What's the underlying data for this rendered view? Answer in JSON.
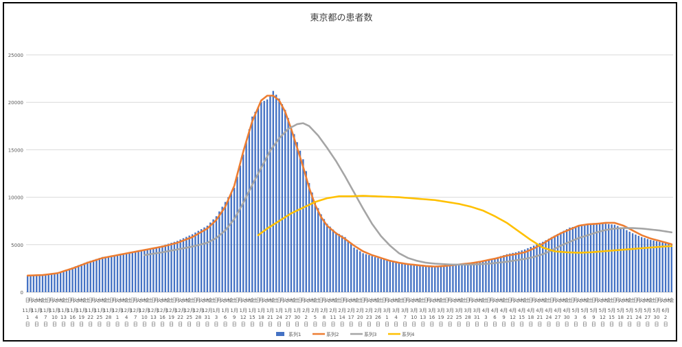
{
  "chart_data": {
    "type": "bar",
    "title": "東京都の患者数",
    "ylim": [
      0,
      25000
    ],
    "yticks": [
      0,
      5000,
      10000,
      15000,
      20000,
      25000
    ],
    "grid": true,
    "legend_position": "bottom",
    "x": {
      "weekdays": [
        "日",
        "月",
        "火",
        "水",
        "木",
        "金",
        "土"
      ],
      "start_weekday_index": 0,
      "count": 216,
      "date_labels": [
        {
          "i": 0,
          "label": "11月1日"
        },
        {
          "i": 3,
          "label": "11月4日"
        },
        {
          "i": 6,
          "label": "11月7日"
        },
        {
          "i": 9,
          "label": "11月10日"
        },
        {
          "i": 12,
          "label": "11月13日"
        },
        {
          "i": 15,
          "label": "11月16日"
        },
        {
          "i": 18,
          "label": "11月19日"
        },
        {
          "i": 21,
          "label": "11月22日"
        },
        {
          "i": 24,
          "label": "11月25日"
        },
        {
          "i": 27,
          "label": "11月28日"
        },
        {
          "i": 30,
          "label": "12月1日"
        },
        {
          "i": 33,
          "label": "12月4日"
        },
        {
          "i": 36,
          "label": "12月7日"
        },
        {
          "i": 39,
          "label": "12月10日"
        },
        {
          "i": 42,
          "label": "12月13日"
        },
        {
          "i": 45,
          "label": "12月16日"
        },
        {
          "i": 48,
          "label": "12月19日"
        },
        {
          "i": 51,
          "label": "12月22日"
        },
        {
          "i": 54,
          "label": "12月25日"
        },
        {
          "i": 57,
          "label": "12月28日"
        },
        {
          "i": 60,
          "label": "12月31日"
        },
        {
          "i": 63,
          "label": "1月3日"
        },
        {
          "i": 66,
          "label": "1月6日"
        },
        {
          "i": 69,
          "label": "1月9日"
        },
        {
          "i": 72,
          "label": "1月12日"
        },
        {
          "i": 75,
          "label": "1月15日"
        },
        {
          "i": 78,
          "label": "1月18日"
        },
        {
          "i": 81,
          "label": "1月21日"
        },
        {
          "i": 84,
          "label": "1月24日"
        },
        {
          "i": 87,
          "label": "1月27日"
        },
        {
          "i": 90,
          "label": "1月30日"
        },
        {
          "i": 93,
          "label": "2月2日"
        },
        {
          "i": 96,
          "label": "2月5日"
        },
        {
          "i": 99,
          "label": "2月8日"
        },
        {
          "i": 102,
          "label": "2月11日"
        },
        {
          "i": 105,
          "label": "2月14日"
        },
        {
          "i": 108,
          "label": "2月17日"
        },
        {
          "i": 111,
          "label": "2月20日"
        },
        {
          "i": 114,
          "label": "2月23日"
        },
        {
          "i": 117,
          "label": "2月26日"
        },
        {
          "i": 120,
          "label": "3月1日"
        },
        {
          "i": 123,
          "label": "3月4日"
        },
        {
          "i": 126,
          "label": "3月7日"
        },
        {
          "i": 129,
          "label": "3月10日"
        },
        {
          "i": 132,
          "label": "3月13日"
        },
        {
          "i": 135,
          "label": "3月16日"
        },
        {
          "i": 138,
          "label": "3月19日"
        },
        {
          "i": 141,
          "label": "3月22日"
        },
        {
          "i": 144,
          "label": "3月25日"
        },
        {
          "i": 147,
          "label": "3月28日"
        },
        {
          "i": 150,
          "label": "3月31日"
        },
        {
          "i": 153,
          "label": "4月3日"
        },
        {
          "i": 156,
          "label": "4月6日"
        },
        {
          "i": 159,
          "label": "4月9日"
        },
        {
          "i": 162,
          "label": "4月12日"
        },
        {
          "i": 165,
          "label": "4月15日"
        },
        {
          "i": 168,
          "label": "4月18日"
        },
        {
          "i": 171,
          "label": "4月21日"
        },
        {
          "i": 174,
          "label": "4月24日"
        },
        {
          "i": 177,
          "label": "4月27日"
        },
        {
          "i": 180,
          "label": "4月30日"
        },
        {
          "i": 183,
          "label": "5月3日"
        },
        {
          "i": 186,
          "label": "5月6日"
        },
        {
          "i": 189,
          "label": "5月9日"
        },
        {
          "i": 192,
          "label": "5月12日"
        },
        {
          "i": 195,
          "label": "5月15日"
        },
        {
          "i": 198,
          "label": "5月18日"
        },
        {
          "i": 201,
          "label": "5月21日"
        },
        {
          "i": 204,
          "label": "5月24日"
        },
        {
          "i": 207,
          "label": "5月27日"
        },
        {
          "i": 210,
          "label": "5月30日"
        },
        {
          "i": 213,
          "label": "6月2日"
        }
      ]
    },
    "series": [
      {
        "name": "系列1",
        "type": "bar",
        "color": "#4472C4",
        "keypoints": [
          [
            0,
            1750
          ],
          [
            5,
            1850
          ],
          [
            10,
            2050
          ],
          [
            15,
            2600
          ],
          [
            20,
            3200
          ],
          [
            25,
            3700
          ],
          [
            30,
            3900
          ],
          [
            35,
            4200
          ],
          [
            40,
            4500
          ],
          [
            45,
            4900
          ],
          [
            50,
            5400
          ],
          [
            55,
            6100
          ],
          [
            60,
            7000
          ],
          [
            63,
            8000
          ],
          [
            66,
            9500
          ],
          [
            69,
            11000
          ],
          [
            72,
            14500
          ],
          [
            75,
            18500
          ],
          [
            78,
            20000
          ],
          [
            80,
            20300
          ],
          [
            82,
            21200
          ],
          [
            84,
            20400
          ],
          [
            86,
            19200
          ],
          [
            88,
            17500
          ],
          [
            90,
            15800
          ],
          [
            92,
            14000
          ],
          [
            94,
            11500
          ],
          [
            96,
            9500
          ],
          [
            98,
            8200
          ],
          [
            100,
            7200
          ],
          [
            103,
            6300
          ],
          [
            106,
            5800
          ],
          [
            109,
            4700
          ],
          [
            112,
            4100
          ],
          [
            115,
            3800
          ],
          [
            118,
            3500
          ],
          [
            121,
            3300
          ],
          [
            124,
            3100
          ],
          [
            127,
            3000
          ],
          [
            130,
            2900
          ],
          [
            133,
            2800
          ],
          [
            136,
            2700
          ],
          [
            139,
            2800
          ],
          [
            142,
            2900
          ],
          [
            145,
            3000
          ],
          [
            148,
            3100
          ],
          [
            151,
            3200
          ],
          [
            154,
            3400
          ],
          [
            157,
            3700
          ],
          [
            160,
            4000
          ],
          [
            163,
            4200
          ],
          [
            166,
            4500
          ],
          [
            169,
            4900
          ],
          [
            172,
            5300
          ],
          [
            175,
            5800
          ],
          [
            178,
            6300
          ],
          [
            181,
            6800
          ],
          [
            184,
            7000
          ],
          [
            187,
            7200
          ],
          [
            190,
            7300
          ],
          [
            193,
            7200
          ],
          [
            196,
            7100
          ],
          [
            199,
            6700
          ],
          [
            202,
            6200
          ],
          [
            205,
            5800
          ],
          [
            208,
            5500
          ],
          [
            211,
            5300
          ],
          [
            215,
            5000
          ]
        ]
      },
      {
        "name": "系列2",
        "type": "line",
        "color": "#ED7D31",
        "keypoints": [
          [
            0,
            1750
          ],
          [
            5,
            1800
          ],
          [
            10,
            2000
          ],
          [
            15,
            2500
          ],
          [
            20,
            3100
          ],
          [
            25,
            3600
          ],
          [
            30,
            3900
          ],
          [
            35,
            4200
          ],
          [
            40,
            4500
          ],
          [
            45,
            4800
          ],
          [
            50,
            5200
          ],
          [
            55,
            5800
          ],
          [
            60,
            6700
          ],
          [
            63,
            7600
          ],
          [
            66,
            9000
          ],
          [
            69,
            11200
          ],
          [
            72,
            14800
          ],
          [
            75,
            18000
          ],
          [
            78,
            20200
          ],
          [
            80,
            20700
          ],
          [
            82,
            20700
          ],
          [
            84,
            20200
          ],
          [
            86,
            19000
          ],
          [
            88,
            17200
          ],
          [
            90,
            15200
          ],
          [
            92,
            13200
          ],
          [
            94,
            11000
          ],
          [
            96,
            9200
          ],
          [
            98,
            7900
          ],
          [
            100,
            7000
          ],
          [
            103,
            6200
          ],
          [
            106,
            5600
          ],
          [
            109,
            4900
          ],
          [
            112,
            4300
          ],
          [
            115,
            3900
          ],
          [
            118,
            3600
          ],
          [
            121,
            3300
          ],
          [
            124,
            3100
          ],
          [
            127,
            2950
          ],
          [
            130,
            2850
          ],
          [
            133,
            2750
          ],
          [
            136,
            2700
          ],
          [
            139,
            2750
          ],
          [
            142,
            2850
          ],
          [
            145,
            2950
          ],
          [
            148,
            3050
          ],
          [
            151,
            3200
          ],
          [
            154,
            3400
          ],
          [
            157,
            3600
          ],
          [
            160,
            3850
          ],
          [
            163,
            4000
          ],
          [
            166,
            4200
          ],
          [
            169,
            4600
          ],
          [
            172,
            5100
          ],
          [
            175,
            5700
          ],
          [
            178,
            6200
          ],
          [
            181,
            6600
          ],
          [
            184,
            7000
          ],
          [
            187,
            7150
          ],
          [
            190,
            7200
          ],
          [
            193,
            7300
          ],
          [
            196,
            7300
          ],
          [
            199,
            7000
          ],
          [
            202,
            6500
          ],
          [
            205,
            6000
          ],
          [
            208,
            5650
          ],
          [
            211,
            5400
          ],
          [
            215,
            5050
          ]
        ]
      },
      {
        "name": "系列3",
        "type": "line",
        "color": "#A5A5A5",
        "start_index": 39,
        "keypoints": [
          [
            39,
            3900
          ],
          [
            45,
            4200
          ],
          [
            50,
            4500
          ],
          [
            55,
            4800
          ],
          [
            60,
            5200
          ],
          [
            63,
            5700
          ],
          [
            66,
            6500
          ],
          [
            69,
            7700
          ],
          [
            72,
            9400
          ],
          [
            75,
            11300
          ],
          [
            78,
            13100
          ],
          [
            81,
            14900
          ],
          [
            84,
            16200
          ],
          [
            87,
            17200
          ],
          [
            90,
            17700
          ],
          [
            92,
            17800
          ],
          [
            94,
            17500
          ],
          [
            97,
            16500
          ],
          [
            100,
            15200
          ],
          [
            103,
            13800
          ],
          [
            106,
            12200
          ],
          [
            109,
            10500
          ],
          [
            112,
            8800
          ],
          [
            115,
            7200
          ],
          [
            118,
            5900
          ],
          [
            121,
            4900
          ],
          [
            124,
            4100
          ],
          [
            127,
            3600
          ],
          [
            130,
            3300
          ],
          [
            133,
            3100
          ],
          [
            136,
            3000
          ],
          [
            139,
            2950
          ],
          [
            142,
            2900
          ],
          [
            145,
            2900
          ],
          [
            148,
            2900
          ],
          [
            151,
            2950
          ],
          [
            154,
            3000
          ],
          [
            157,
            3100
          ],
          [
            160,
            3200
          ],
          [
            163,
            3350
          ],
          [
            166,
            3500
          ],
          [
            169,
            3700
          ],
          [
            172,
            4000
          ],
          [
            175,
            4400
          ],
          [
            178,
            4900
          ],
          [
            181,
            5300
          ],
          [
            184,
            5700
          ],
          [
            187,
            6000
          ],
          [
            190,
            6300
          ],
          [
            193,
            6550
          ],
          [
            196,
            6700
          ],
          [
            199,
            6750
          ],
          [
            202,
            6750
          ],
          [
            205,
            6700
          ],
          [
            208,
            6600
          ],
          [
            211,
            6500
          ],
          [
            215,
            6300
          ]
        ]
      },
      {
        "name": "系列4",
        "type": "line",
        "color": "#FFC000",
        "start_index": 77,
        "keypoints": [
          [
            77,
            6000
          ],
          [
            80,
            6700
          ],
          [
            84,
            7500
          ],
          [
            88,
            8300
          ],
          [
            92,
            8900
          ],
          [
            96,
            9500
          ],
          [
            100,
            9900
          ],
          [
            104,
            10100
          ],
          [
            108,
            10100
          ],
          [
            112,
            10150
          ],
          [
            116,
            10100
          ],
          [
            120,
            10050
          ],
          [
            124,
            10000
          ],
          [
            128,
            9900
          ],
          [
            132,
            9800
          ],
          [
            136,
            9700
          ],
          [
            140,
            9500
          ],
          [
            144,
            9300
          ],
          [
            148,
            9000
          ],
          [
            152,
            8600
          ],
          [
            156,
            8000
          ],
          [
            160,
            7300
          ],
          [
            164,
            6400
          ],
          [
            168,
            5500
          ],
          [
            172,
            4700
          ],
          [
            176,
            4300
          ],
          [
            180,
            4200
          ],
          [
            184,
            4150
          ],
          [
            188,
            4200
          ],
          [
            192,
            4300
          ],
          [
            196,
            4400
          ],
          [
            200,
            4500
          ],
          [
            204,
            4600
          ],
          [
            208,
            4700
          ],
          [
            212,
            4800
          ],
          [
            215,
            4850
          ]
        ]
      }
    ]
  }
}
